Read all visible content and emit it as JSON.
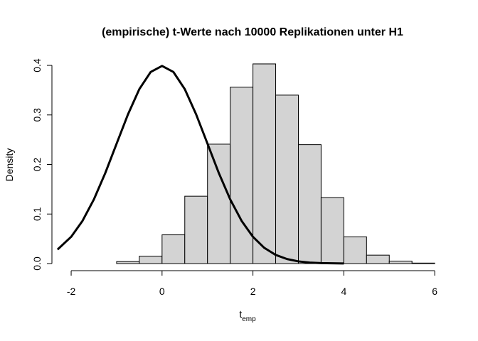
{
  "chart_data": {
    "type": "histogram",
    "title": "(empirische) t-Werte nach 10000 Replikationen unter H1",
    "xlabel": {
      "text": "t",
      "subscript": "emp"
    },
    "ylabel": "Density",
    "bins": [
      -2,
      -1.5,
      -1,
      -0.5,
      0,
      0.5,
      1,
      1.5,
      2,
      2.5,
      3,
      3.5,
      4,
      4.5,
      5,
      5.5,
      6
    ],
    "values": [
      0.0,
      0.0,
      0.004,
      0.015,
      0.058,
      0.136,
      0.241,
      0.356,
      0.403,
      0.34,
      0.24,
      0.133,
      0.054,
      0.017,
      0.005,
      0.001
    ],
    "color": "#d3d3d3",
    "curve": {
      "color": "#000000",
      "x": [
        -2.3,
        -2,
        -1.75,
        -1.5,
        -1.25,
        -1,
        -0.75,
        -0.5,
        -0.25,
        0,
        0.25,
        0.5,
        0.75,
        1,
        1.25,
        1.5,
        1.75,
        2,
        2.25,
        2.5,
        2.75,
        3,
        3.25,
        3.5,
        4
      ],
      "values": [
        0.0283,
        0.054,
        0.0863,
        0.1295,
        0.1826,
        0.242,
        0.3011,
        0.3521,
        0.3867,
        0.3989,
        0.3867,
        0.3521,
        0.3011,
        0.242,
        0.1826,
        0.1295,
        0.0863,
        0.054,
        0.0317,
        0.0175,
        0.0091,
        0.0044,
        0.002,
        0.0009,
        0.0001
      ]
    },
    "xlim": [
      -2.32,
      6.32
    ],
    "ylim": [
      0,
      0.419
    ],
    "xticks": [
      -2,
      0,
      2,
      4,
      6
    ],
    "yticks": [
      {
        "value": 0,
        "label": "0.0"
      },
      0.1,
      0.2,
      0.3,
      0.4
    ]
  }
}
